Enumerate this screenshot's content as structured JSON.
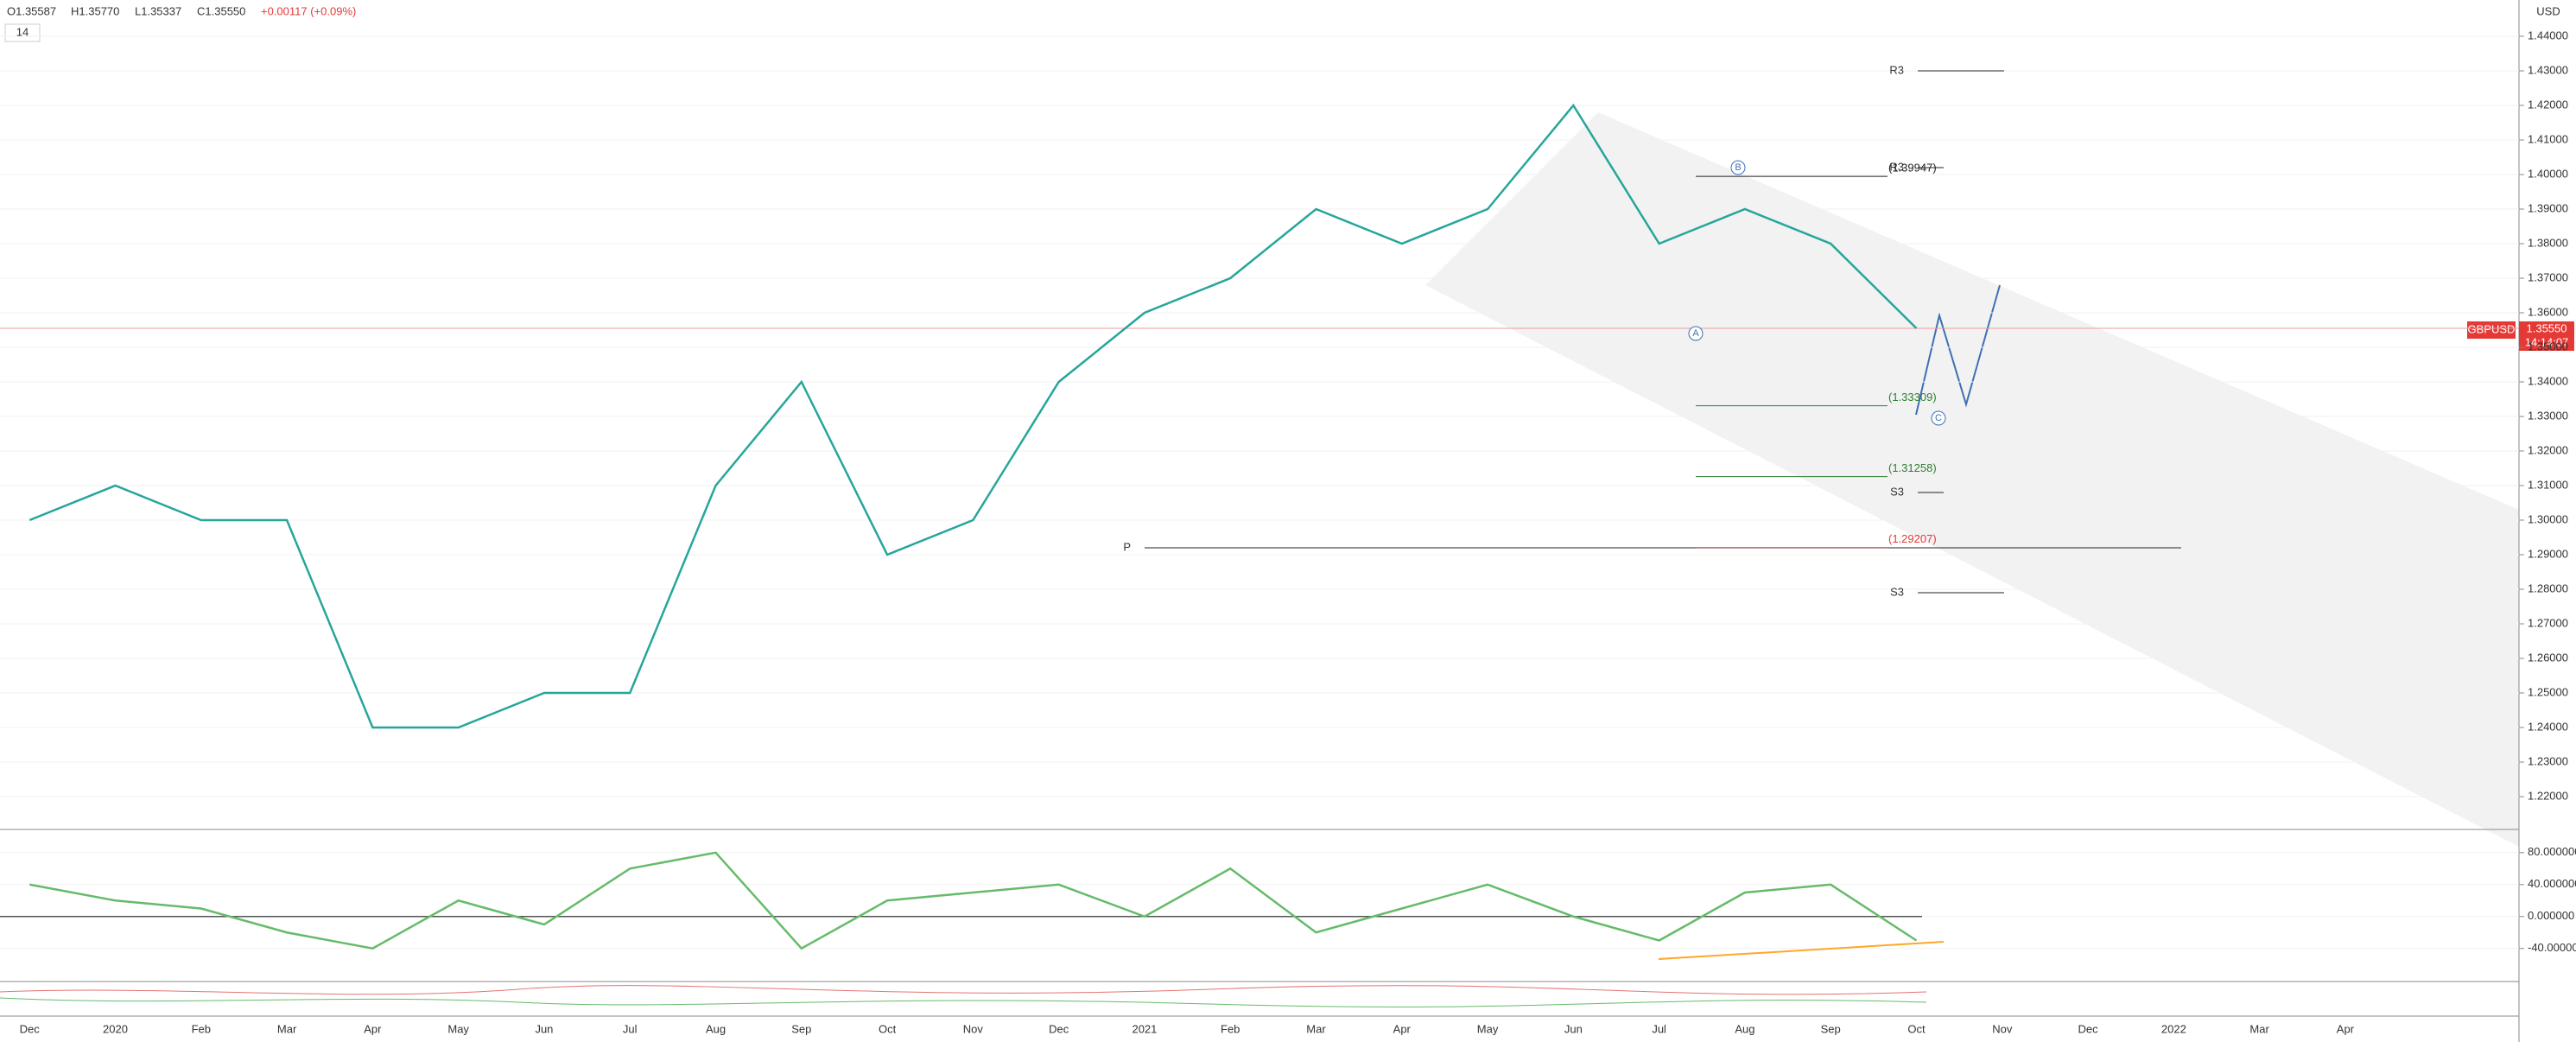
{
  "header": {
    "ohlc": [
      "O1.35587",
      "H1.35770",
      "L1.35337",
      "C1.35550"
    ],
    "change": "+0.00117 (+0.09%)",
    "interval": "14",
    "currency": "USD",
    "symbol": "GBPUSD",
    "price": "1.35550",
    "countdown": "14:14:07"
  },
  "chart_data": [
    {
      "type": "line",
      "categories": [
        "Dec",
        "2020",
        "Feb",
        "Mar",
        "Apr",
        "May",
        "Jun",
        "Jul",
        "Aug",
        "Sep",
        "Oct",
        "Nov",
        "Dec",
        "2021",
        "Feb",
        "Mar",
        "Apr",
        "May",
        "Jun",
        "Jul",
        "Aug",
        "Sep",
        "Oct",
        "Nov",
        "Dec",
        "2022",
        "Mar",
        "Apr"
      ],
      "values": [
        1.3,
        1.31,
        1.3,
        1.3,
        1.24,
        1.24,
        1.25,
        1.25,
        1.31,
        1.34,
        1.29,
        1.3,
        1.34,
        1.36,
        1.37,
        1.39,
        1.38,
        1.39,
        1.42,
        1.38,
        1.39,
        1.38,
        1.3555,
        null,
        null,
        null,
        null,
        null
      ],
      "color": "#26a69a",
      "current": 1.3555,
      "ylim": [
        1.2105,
        1.4505
      ],
      "yticks": [
        {
          "value": 1.22,
          "label": "1.22000"
        },
        {
          "value": 1.23,
          "label": "1.23000"
        },
        {
          "value": 1.24,
          "label": "1.24000"
        },
        {
          "value": 1.25,
          "label": "1.25000"
        },
        {
          "value": 1.26,
          "label": "1.26000"
        },
        {
          "value": 1.27,
          "label": "1.27000"
        },
        {
          "value": 1.28,
          "label": "1.28000"
        },
        {
          "value": 1.29,
          "label": "1.29000"
        },
        {
          "value": 1.3,
          "label": "1.30000"
        },
        {
          "value": 1.31,
          "label": "1.31000"
        },
        {
          "value": 1.32,
          "label": "1.32000"
        },
        {
          "value": 1.33,
          "label": "1.33000"
        },
        {
          "value": 1.34,
          "label": "1.34000"
        },
        {
          "value": 1.35,
          "label": "1.35000"
        },
        {
          "value": 1.36,
          "label": "1.36000"
        },
        {
          "value": 1.37,
          "label": "1.37000"
        },
        {
          "value": 1.38,
          "label": "1.38000"
        },
        {
          "value": 1.39,
          "label": "1.39000"
        },
        {
          "value": 1.4,
          "label": "1.40000"
        },
        {
          "value": 1.41,
          "label": "1.41000"
        },
        {
          "value": 1.42,
          "label": "1.42000"
        },
        {
          "value": 1.43,
          "label": "1.43000"
        },
        {
          "value": 1.44,
          "label": "1.44000"
        }
      ],
      "levels": [
        {
          "label": "R3",
          "value": 1.43
        },
        {
          "label": "R3",
          "value": 1.402
        },
        {
          "label": "S3",
          "value": 1.308
        },
        {
          "label": "S3",
          "value": 1.279
        },
        {
          "label": "P",
          "value": 1.292
        }
      ],
      "fib_levels": [
        {
          "label": "(1.39947)",
          "value": 1.39947
        },
        {
          "label": "(1.33309)",
          "value": 1.33309
        },
        {
          "label": "(1.31258)",
          "value": 1.31258
        },
        {
          "label": "(1.29207)",
          "value": 1.29207
        }
      ],
      "wave_labels": [
        "A",
        "B",
        "C"
      ]
    },
    {
      "type": "line",
      "values": [
        40,
        20,
        10,
        -20,
        -40,
        20,
        -10,
        60,
        80,
        -40,
        20,
        30,
        40,
        0,
        60,
        -20,
        10,
        40,
        0,
        -30,
        30,
        40,
        -30,
        null,
        null,
        null,
        null,
        null
      ],
      "color": "#66bb6a",
      "ylim": [
        -81.4,
        109
      ],
      "yticks": [
        {
          "value": 80,
          "label": "80.000000"
        },
        {
          "value": 40,
          "label": "40.000000"
        },
        {
          "value": 0,
          "label": "0.000000"
        },
        {
          "value": -40,
          "label": "-40.000000"
        }
      ]
    }
  ]
}
